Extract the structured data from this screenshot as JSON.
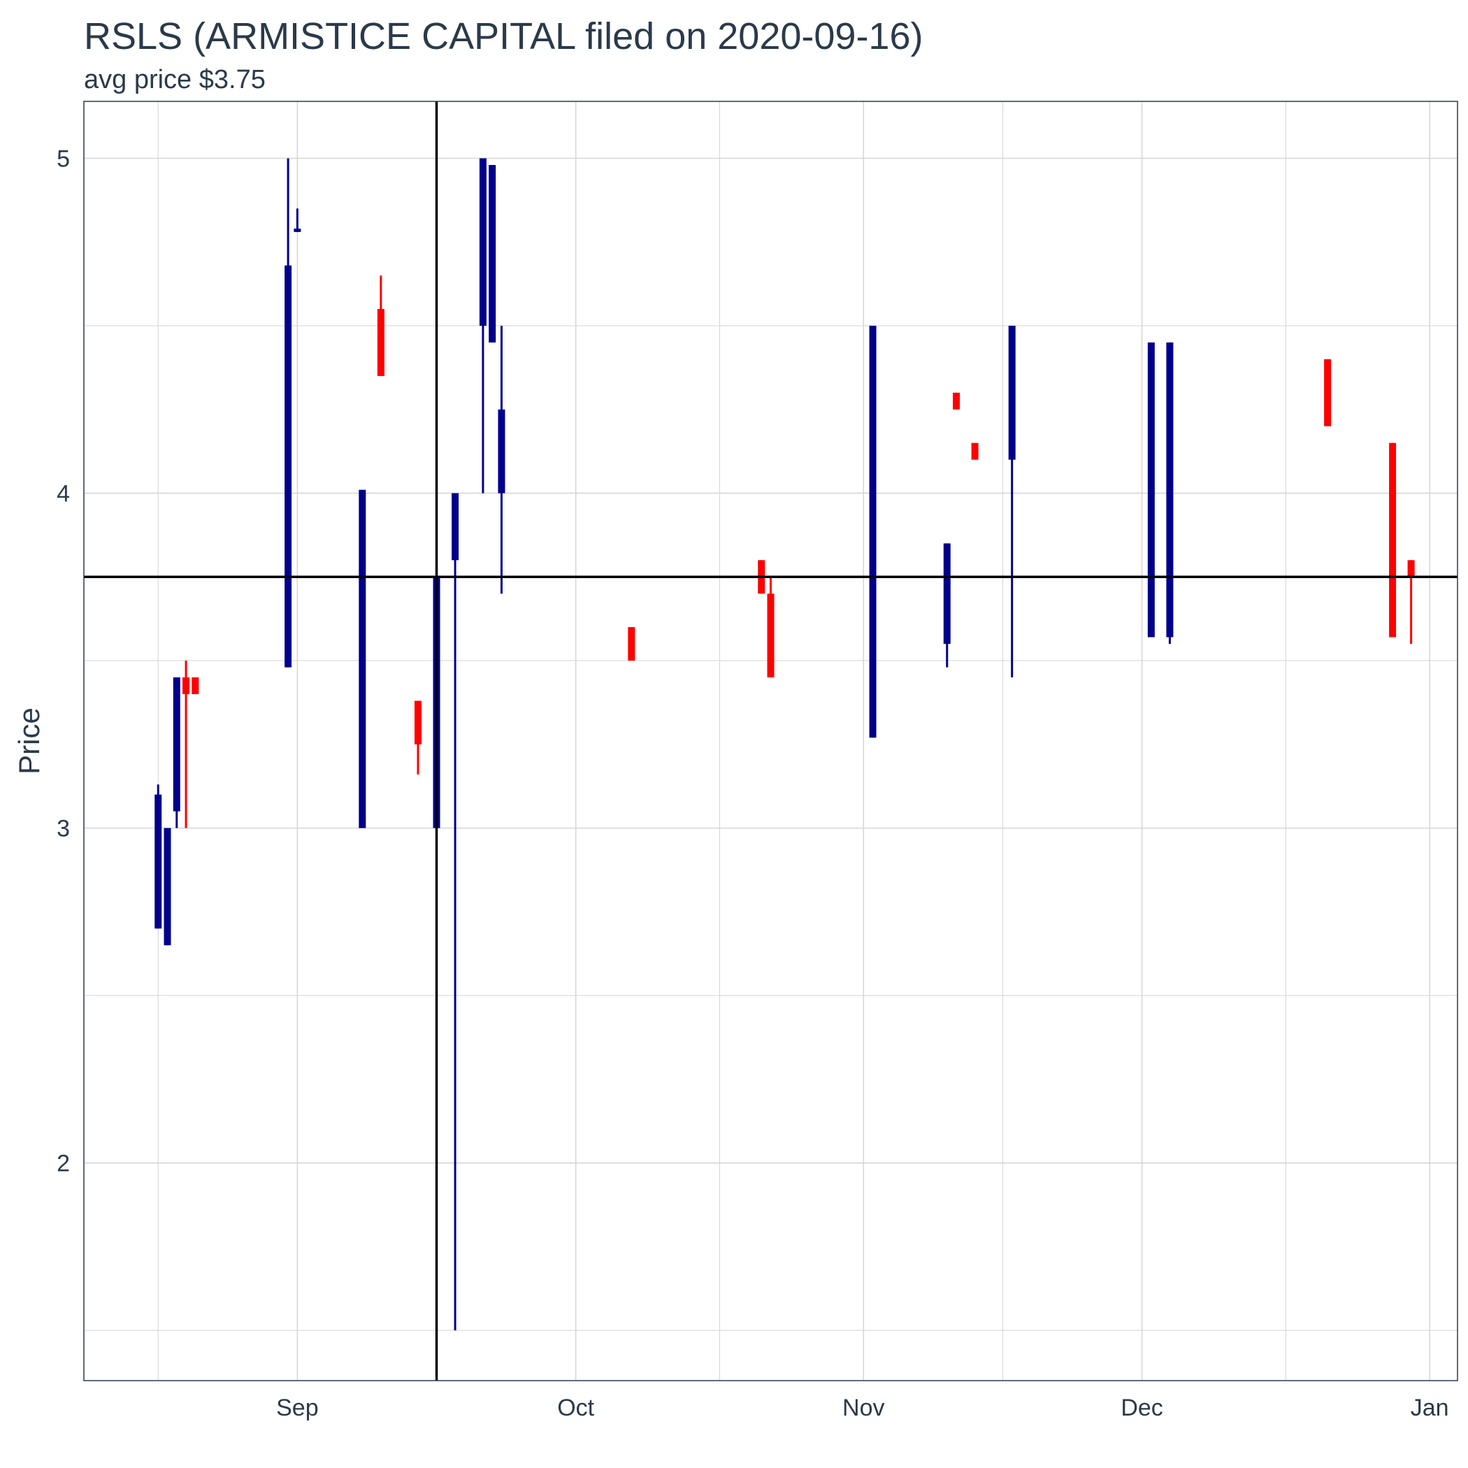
{
  "chart_data": {
    "type": "candlestick",
    "title": "RSLS (ARMISTICE CAPITAL filed on 2020-09-16)",
    "subtitle": "avg price $3.75",
    "xlabel": "",
    "ylabel": "Price",
    "ylim": [
      1.35,
      5.17
    ],
    "xlim": [
      "2020-08-09",
      "2021-01-04"
    ],
    "y_ticks": [
      2,
      3,
      4,
      5
    ],
    "x_ticks": [
      {
        "date": "2020-09-01",
        "label": "Sep"
      },
      {
        "date": "2020-10-01",
        "label": "Oct"
      },
      {
        "date": "2020-11-01",
        "label": "Nov"
      },
      {
        "date": "2020-12-01",
        "label": "Dec"
      },
      {
        "date": "2021-01-01",
        "label": "Jan"
      }
    ],
    "grid": true,
    "reference_lines": {
      "hline_price": 3.75,
      "vline_date": "2020-09-16"
    },
    "colors": {
      "up": "#00008b",
      "down": "#ff0000",
      "reference": "#000000",
      "grid": "#d3d3d3",
      "border": "#2b3a4a"
    },
    "candles": [
      {
        "date": "2020-08-17",
        "open": 2.7,
        "high": 3.13,
        "low": 2.7,
        "close": 3.1
      },
      {
        "date": "2020-08-18",
        "open": 2.65,
        "high": 3.0,
        "low": 2.65,
        "close": 3.0
      },
      {
        "date": "2020-08-19",
        "open": 3.05,
        "high": 3.45,
        "low": 3.0,
        "close": 3.45
      },
      {
        "date": "2020-08-20",
        "open": 3.45,
        "high": 3.5,
        "low": 3.0,
        "close": 3.4
      },
      {
        "date": "2020-08-21",
        "open": 3.45,
        "high": 3.45,
        "low": 3.4,
        "close": 3.4
      },
      {
        "date": "2020-08-31",
        "open": 3.48,
        "high": 5.0,
        "low": 3.48,
        "close": 4.68
      },
      {
        "date": "2020-09-01",
        "open": 4.78,
        "high": 4.85,
        "low": 4.78,
        "close": 4.79
      },
      {
        "date": "2020-09-08",
        "open": 3.0,
        "high": 4.01,
        "low": 3.0,
        "close": 4.01
      },
      {
        "date": "2020-09-10",
        "open": 4.55,
        "high": 4.65,
        "low": 4.35,
        "close": 4.35
      },
      {
        "date": "2020-09-14",
        "open": 3.38,
        "high": 3.38,
        "low": 3.16,
        "close": 3.25
      },
      {
        "date": "2020-09-16",
        "open": 3.0,
        "high": 3.75,
        "low": 3.0,
        "close": 3.75
      },
      {
        "date": "2020-09-18",
        "open": 3.8,
        "high": 4.0,
        "low": 1.5,
        "close": 4.0
      },
      {
        "date": "2020-09-21",
        "open": 4.5,
        "high": 5.0,
        "low": 4.0,
        "close": 5.0
      },
      {
        "date": "2020-09-22",
        "open": 4.45,
        "high": 4.98,
        "low": 4.45,
        "close": 4.98
      },
      {
        "date": "2020-09-23",
        "open": 4.0,
        "high": 4.5,
        "low": 3.7,
        "close": 4.25
      },
      {
        "date": "2020-10-07",
        "open": 3.6,
        "high": 3.6,
        "low": 3.5,
        "close": 3.5
      },
      {
        "date": "2020-10-21",
        "open": 3.8,
        "high": 3.8,
        "low": 3.7,
        "close": 3.7
      },
      {
        "date": "2020-10-22",
        "open": 3.7,
        "high": 3.75,
        "low": 3.45,
        "close": 3.45
      },
      {
        "date": "2020-11-02",
        "open": 3.27,
        "high": 4.5,
        "low": 3.27,
        "close": 4.5
      },
      {
        "date": "2020-11-10",
        "open": 3.55,
        "high": 3.85,
        "low": 3.48,
        "close": 3.85
      },
      {
        "date": "2020-11-11",
        "open": 4.3,
        "high": 4.3,
        "low": 4.25,
        "close": 4.25
      },
      {
        "date": "2020-11-13",
        "open": 4.15,
        "high": 4.15,
        "low": 4.1,
        "close": 4.1
      },
      {
        "date": "2020-11-17",
        "open": 4.1,
        "high": 4.5,
        "low": 3.45,
        "close": 4.5
      },
      {
        "date": "2020-12-02",
        "open": 3.57,
        "high": 4.45,
        "low": 3.57,
        "close": 4.45
      },
      {
        "date": "2020-12-04",
        "open": 3.57,
        "high": 4.45,
        "low": 3.55,
        "close": 4.45
      },
      {
        "date": "2020-12-21",
        "open": 4.4,
        "high": 4.4,
        "low": 4.2,
        "close": 4.2
      },
      {
        "date": "2020-12-28",
        "open": 4.15,
        "high": 4.15,
        "low": 3.57,
        "close": 3.57
      },
      {
        "date": "2020-12-30",
        "open": 3.8,
        "high": 3.8,
        "low": 3.55,
        "close": 3.75
      }
    ]
  }
}
